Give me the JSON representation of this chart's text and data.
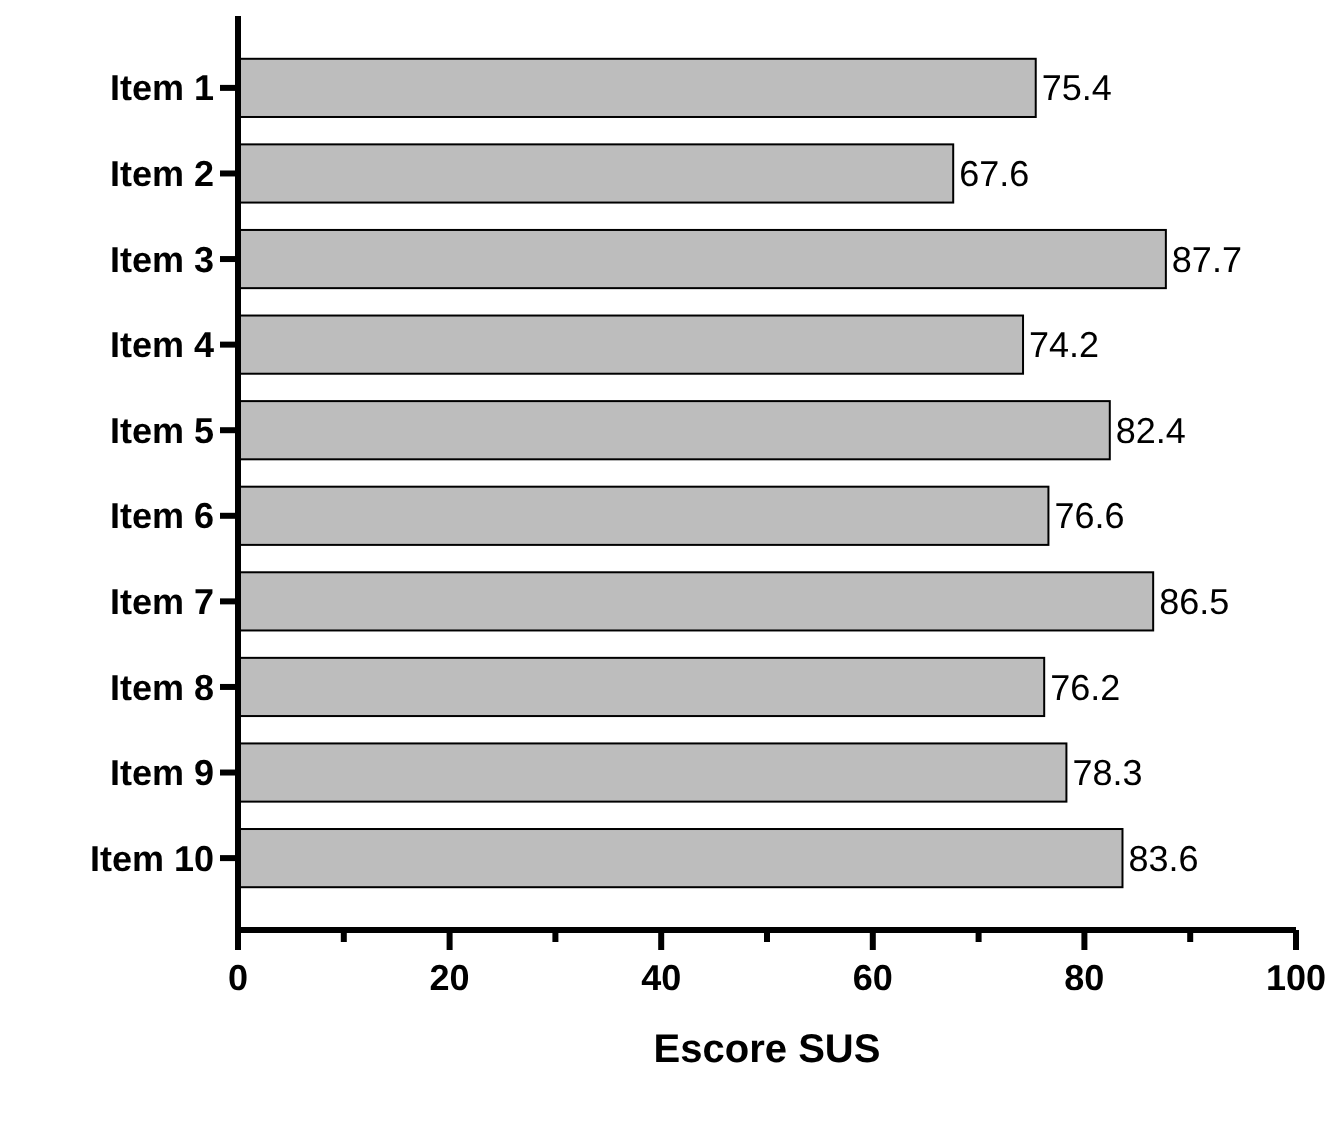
{
  "chart_data": {
    "type": "bar",
    "orientation": "horizontal",
    "xlabel": "Escore SUS",
    "categories": [
      "Item 1",
      "Item 2",
      "Item 3",
      "Item 4",
      "Item 5",
      "Item 6",
      "Item 7",
      "Item 8",
      "Item 9",
      "Item 10"
    ],
    "values": [
      75.4,
      67.6,
      87.7,
      74.2,
      82.4,
      76.6,
      86.5,
      76.2,
      78.3,
      83.6
    ],
    "color": "#bdbdbd",
    "data_labels": true,
    "xlim": [
      0,
      100
    ],
    "xticks": [
      0,
      {
        "value": 10,
        "label": null
      },
      20,
      {
        "value": 30,
        "label": null
      },
      40,
      {
        "value": 50,
        "label": null
      },
      60,
      {
        "value": 70,
        "label": null
      },
      80,
      {
        "value": 90,
        "label": null
      },
      100
    ],
    "grid": false
  }
}
